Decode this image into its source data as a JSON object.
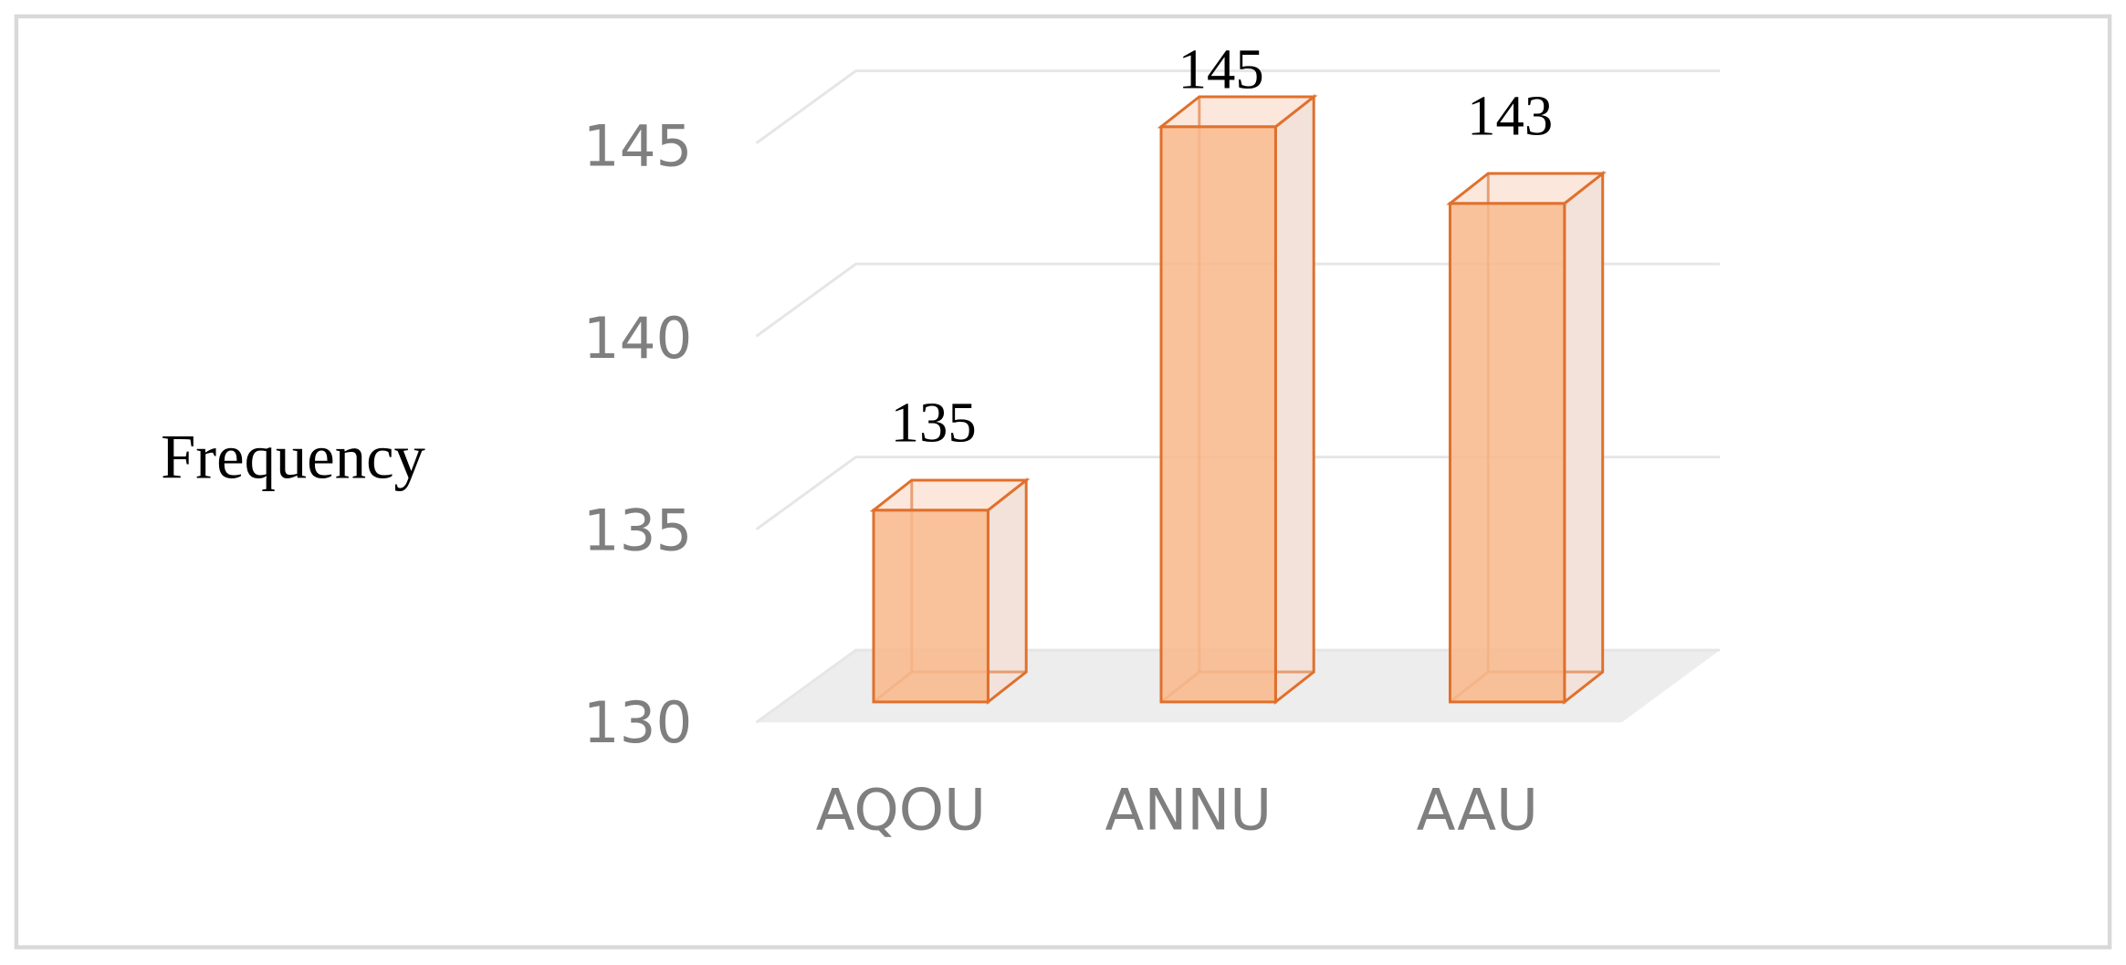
{
  "chart_data": {
    "type": "bar3d",
    "y_label": "Frequency",
    "categories": [
      "AQOU",
      "ANNU",
      "AAU"
    ],
    "values": [
      135,
      145,
      143
    ],
    "color": "#f8b78a",
    "edge_color": "#e0702c",
    "ylim": [
      130,
      145
    ],
    "yticks": [
      130,
      135,
      140,
      145
    ],
    "grid": true
  }
}
